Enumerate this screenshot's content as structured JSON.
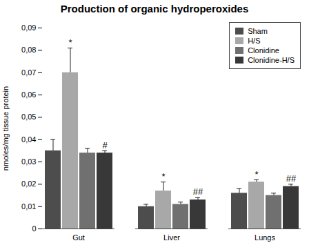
{
  "chart_data": {
    "type": "bar",
    "title": "Production of organic hydroperoxides",
    "y_label": "nmoles/mg tissue protein",
    "categories": [
      "Gut",
      "Liver",
      "Lungs"
    ],
    "series": [
      {
        "name": "Sham",
        "color": "#4d4d4d",
        "values": [
          0.035,
          0.01,
          0.016
        ],
        "errors": [
          0.005,
          0.001,
          0.002
        ]
      },
      {
        "name": "H/S",
        "color": "#a8a8a8",
        "values": [
          0.07,
          0.017,
          0.021
        ],
        "errors": [
          0.011,
          0.004,
          0.001
        ],
        "annotations": [
          "*",
          "*",
          "*"
        ]
      },
      {
        "name": "Clonidine",
        "color": "#707070",
        "values": [
          0.034,
          0.011,
          0.015
        ],
        "errors": [
          0.002,
          0.001,
          0.001
        ]
      },
      {
        "name": "Clonidine-H/S",
        "color": "#383838",
        "values": [
          0.034,
          0.013,
          0.019
        ],
        "errors": [
          0.001,
          0.001,
          0.001
        ],
        "annotations": [
          "#",
          "##",
          "##"
        ]
      }
    ],
    "ylim": [
      0,
      0.09
    ],
    "yticks": [
      0,
      {
        "value": 0.01,
        "label": "0,01"
      },
      {
        "value": 0.02,
        "label": "0,02"
      },
      {
        "value": 0.03,
        "label": "0,03"
      },
      {
        "value": 0.04,
        "label": "0,04"
      },
      {
        "value": 0.05,
        "label": "0,05"
      },
      {
        "value": 0.06,
        "label": "0,06"
      },
      {
        "value": 0.07,
        "label": "0,07"
      },
      {
        "value": 0.08,
        "label": "0,08"
      },
      {
        "value": 0.09,
        "label": "0,09"
      }
    ],
    "grid": false,
    "legend": "upper right"
  }
}
